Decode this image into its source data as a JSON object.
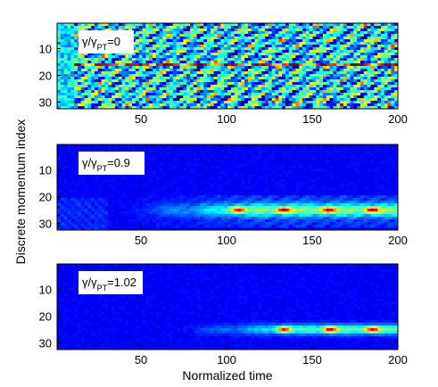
{
  "chart_data": [
    {
      "type": "heatmap",
      "annotation": {
        "base": "γ/γ",
        "subscript": "PT",
        "suffix": "=0"
      },
      "x_ticks": [
        50,
        100,
        150,
        200
      ],
      "y_ticks": [
        10,
        20,
        30
      ],
      "xlim": [
        1,
        200
      ],
      "ylim": [
        1,
        32
      ],
      "xlabel": "",
      "bright_rows": [
        16
      ],
      "description": "broadband"
    },
    {
      "type": "heatmap",
      "annotation": {
        "base": "γ/γ",
        "subscript": "PT",
        "suffix": "=0.9"
      },
      "x_ticks": [
        50,
        100,
        150,
        200
      ],
      "y_ticks": [
        10,
        20,
        30
      ],
      "xlim": [
        1,
        200
      ],
      "ylim": [
        1,
        32
      ],
      "xlabel": "",
      "bright_rows": [
        25
      ],
      "hot_times": [
        106,
        133,
        159,
        185
      ]
    },
    {
      "type": "heatmap",
      "annotation": {
        "base": "γ/γ",
        "subscript": "PT",
        "suffix": "=1.02"
      },
      "x_ticks": [
        50,
        100,
        150,
        200
      ],
      "y_ticks": [
        10,
        20,
        30
      ],
      "xlim": [
        1,
        200
      ],
      "ylim": [
        1,
        32
      ],
      "xlabel": "Normalized time",
      "bright_rows": [
        25
      ],
      "hot_times": [
        133,
        160,
        185
      ]
    }
  ],
  "shared": {
    "ylabel": "Discrete momentum index"
  },
  "colors": {
    "low": "#00008f",
    "mid": "#00a0ff",
    "high": "#80ff80",
    "peak": "#ff2000"
  }
}
